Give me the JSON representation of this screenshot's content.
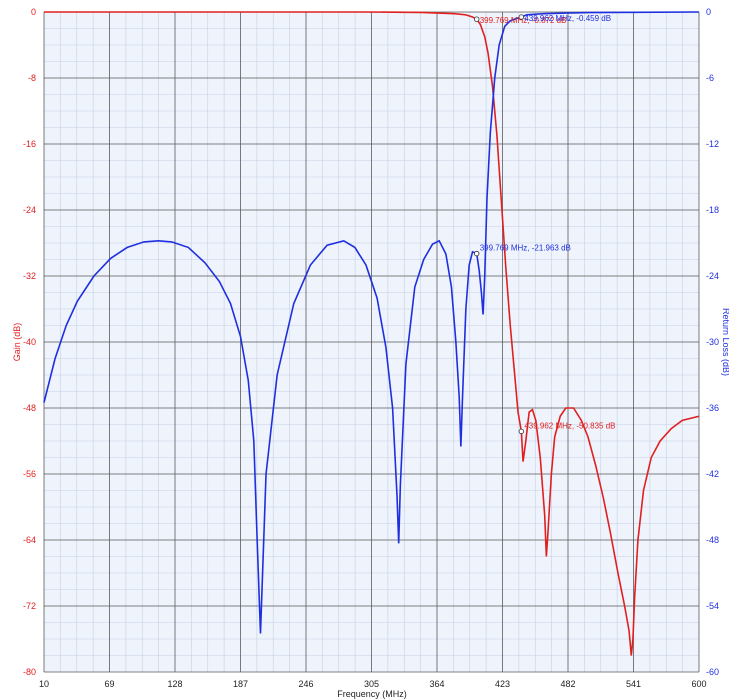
{
  "chart_data": {
    "type": "line",
    "title": "",
    "xlabel": "Frequency (MHz)",
    "ylabel_left": "Gain (dB)",
    "ylabel_right": "Return Loss (dB)",
    "xlim": [
      10,
      600
    ],
    "ylim_left": [
      -80,
      0
    ],
    "ylim_right": [
      -60,
      0
    ],
    "x_ticks": [
      10,
      69,
      128,
      187,
      246,
      305,
      364,
      423,
      482,
      541,
      600
    ],
    "y_ticks_left": [
      0,
      -8,
      -16,
      -24,
      -32,
      -40,
      -48,
      -56,
      -64,
      -72,
      -80
    ],
    "y_ticks_right": [
      0,
      -6,
      -12,
      -18,
      -24,
      -30,
      -36,
      -42,
      -48,
      -54,
      -60
    ],
    "grid": true,
    "colors": {
      "gain": "#e02020",
      "return_loss": "#1f2fe0",
      "plot_bg": "#eef3fc",
      "grid_major": "#5a5a5a",
      "grid_minor": "#c6d2e6"
    },
    "series": [
      {
        "axis": "left",
        "color": "#e02020",
        "x": [
          10,
          100,
          200,
          300,
          350,
          380,
          390,
          396,
          399.769,
          403,
          407,
          410,
          414,
          418,
          422,
          426,
          430,
          434,
          437,
          439.962,
          441.5,
          444,
          447,
          450,
          453,
          457,
          461,
          462.5,
          464,
          467,
          470,
          475,
          480,
          487,
          494,
          500,
          507,
          514,
          520,
          527,
          533,
          537,
          539,
          540.5,
          542,
          545,
          550,
          557,
          565,
          575,
          585,
          600
        ],
        "y": [
          0,
          0,
          0,
          0,
          -0.05,
          -0.2,
          -0.35,
          -0.6,
          -0.872,
          -1.5,
          -3,
          -5,
          -9,
          -15,
          -23,
          -31,
          -38,
          -44,
          -48.5,
          -50.835,
          -54.5,
          -52,
          -48.5,
          -48.2,
          -49.5,
          -54,
          -61,
          -66,
          -63,
          -56,
          -51.5,
          -49,
          -48,
          -48,
          -49.5,
          -51.5,
          -55,
          -59,
          -63,
          -68,
          -72,
          -75,
          -78,
          -76,
          -71,
          -64,
          -58,
          -54,
          -52,
          -50.5,
          -49.5,
          -49
        ]
      },
      {
        "axis": "right",
        "color": "#1f2fe0",
        "x": [
          10,
          20,
          30,
          40,
          55,
          70,
          85,
          100,
          113,
          125,
          140,
          155,
          168,
          178,
          187,
          194,
          199,
          202,
          205,
          210,
          220,
          235,
          250,
          265,
          280,
          290,
          300,
          310,
          318,
          324,
          328,
          329.5,
          331,
          336,
          344,
          352,
          360,
          366,
          372,
          377,
          381,
          384,
          385.5,
          387,
          390,
          393,
          396,
          399.769,
          402,
          404,
          405.5,
          407,
          409,
          412,
          416,
          420,
          425,
          430,
          435,
          439.962,
          445,
          460,
          480,
          500,
          600
        ],
        "y": [
          -35.5,
          -31.5,
          -28.5,
          -26.3,
          -24,
          -22.4,
          -21.4,
          -20.9,
          -20.8,
          -20.9,
          -21.4,
          -22.8,
          -24.5,
          -26.5,
          -29.5,
          -33.5,
          -39,
          -48,
          -56.5,
          -42,
          -33,
          -26.5,
          -23,
          -21.2,
          -20.8,
          -21.4,
          -23,
          -26,
          -30.5,
          -36,
          -44,
          -48.3,
          -43,
          -32,
          -25,
          -22.5,
          -21.1,
          -20.8,
          -22,
          -25,
          -30,
          -35,
          -39.5,
          -35,
          -27,
          -23,
          -21.8,
          -21.963,
          -23.5,
          -25.5,
          -27.5,
          -24,
          -17,
          -11,
          -6,
          -3,
          -1.3,
          -0.8,
          -0.6,
          -0.459,
          -0.25,
          -0.15,
          -0.1,
          -0.05,
          0
        ]
      }
    ],
    "markers": [
      {
        "series": 0,
        "x": 399.769,
        "y": -0.872,
        "label": "399.769 MHz, -0.872 dB",
        "color": "#e02020"
      },
      {
        "series": 1,
        "x": 439.962,
        "y": -0.459,
        "label": "439.962 MHz, -0.459 dB",
        "color": "#1f2fe0"
      },
      {
        "series": 1,
        "x": 399.769,
        "y": -21.963,
        "label": "399.769 MHz, -21.963 dB",
        "color": "#1f2fe0"
      },
      {
        "series": 0,
        "x": 439.962,
        "y": -50.835,
        "label": "439.962 MHz, -50.835 dB",
        "color": "#e02020"
      }
    ]
  }
}
